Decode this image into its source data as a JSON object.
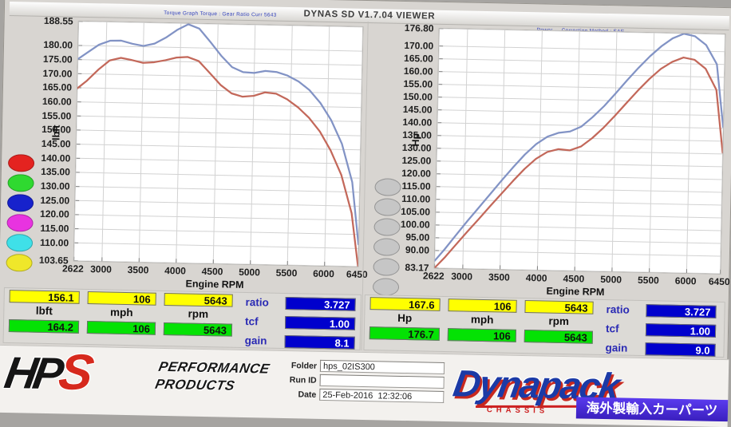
{
  "window_title": "DYNAS SD V1.7.04 VIEWER",
  "chart_data": [
    {
      "type": "line",
      "title": "Torque Graph  Torque : Gear Ratio   Curr 5643",
      "xlabel": "Engine RPM",
      "ylabel": "lbft",
      "xlim": [
        2622,
        6450
      ],
      "ylim": [
        103.65,
        188.55
      ],
      "xticks": [
        2622,
        3000,
        3500,
        4000,
        4500,
        5000,
        5500,
        6000,
        6450
      ],
      "yticks": [
        "188.55",
        "180.00",
        "175.00",
        "170.00",
        "165.00",
        "160.00",
        "155.00",
        "150.00",
        "145.00",
        "140.00",
        "135.00",
        "130.00",
        "125.00",
        "120.00",
        "115.00",
        "110.00",
        "103.65"
      ],
      "legend_colors": [
        "#e42320",
        "#2fd930",
        "#1722cc",
        "#e833e0",
        "#3fe0e8",
        "#efe72a"
      ],
      "x": [
        2622,
        2750,
        2900,
        3050,
        3200,
        3350,
        3500,
        3650,
        3800,
        3950,
        4100,
        4250,
        4400,
        4550,
        4700,
        4850,
        5000,
        5150,
        5300,
        5450,
        5600,
        5750,
        5900,
        6050,
        6200,
        6350,
        6450
      ],
      "series": [
        {
          "name": "corrected-torque",
          "color": "#8293c5",
          "values": [
            175.2,
            177.6,
            180.4,
            181.9,
            182.0,
            181.0,
            180.3,
            181.2,
            183.4,
            186.2,
            188.3,
            186.8,
            182.2,
            177.4,
            173.4,
            171.7,
            171.5,
            172.3,
            172.0,
            170.8,
            168.8,
            165.8,
            161.3,
            155.3,
            147.0,
            133.5,
            111.5
          ]
        },
        {
          "name": "measured-torque",
          "color": "#c3685a",
          "values": [
            164.8,
            167.6,
            171.6,
            174.9,
            175.9,
            175.2,
            174.3,
            174.6,
            175.4,
            176.4,
            176.7,
            175.3,
            171.2,
            167.0,
            164.1,
            163.0,
            163.4,
            164.7,
            164.3,
            162.4,
            159.6,
            156.0,
            151.2,
            144.6,
            136.0,
            122.5,
            103.7
          ]
        }
      ]
    },
    {
      "type": "line",
      "title": "Power  —  Correction Method : SAE",
      "xlabel": "Engine RPM",
      "ylabel": "Hp",
      "xlim": [
        2622,
        6450
      ],
      "ylim": [
        83.17,
        176.8
      ],
      "xticks": [
        2622,
        3000,
        3500,
        4000,
        4500,
        5000,
        5500,
        6000,
        6450
      ],
      "yticks": [
        "176.80",
        "170.00",
        "165.00",
        "160.00",
        "155.00",
        "150.00",
        "145.00",
        "140.00",
        "135.00",
        "130.00",
        "125.00",
        "120.00",
        "115.00",
        "110.00",
        "105.00",
        "100.00",
        "95.00",
        "90.00",
        "83.17"
      ],
      "legend_colors": [
        "#c6c6c6",
        "#c6c6c6",
        "#c6c6c6",
        "#c6c6c6",
        "#c6c6c6",
        "#c6c6c6"
      ],
      "x": [
        2622,
        2750,
        2900,
        3050,
        3200,
        3350,
        3500,
        3650,
        3800,
        3950,
        4100,
        4250,
        4400,
        4550,
        4700,
        4850,
        5000,
        5150,
        5300,
        5450,
        5600,
        5750,
        5900,
        6050,
        6200,
        6350,
        6450
      ],
      "series": [
        {
          "name": "corrected-power",
          "color": "#8293c5",
          "values": [
            86.0,
            90.5,
            96.2,
            101.8,
            107.2,
            112.6,
            118.0,
            123.2,
            128.2,
            132.4,
            135.4,
            137.0,
            137.6,
            139.6,
            143.4,
            147.8,
            152.8,
            158.0,
            163.0,
            167.6,
            171.6,
            174.8,
            176.7,
            175.8,
            172.5,
            165.0,
            140.5
          ]
        },
        {
          "name": "measured-power",
          "color": "#c3685a",
          "values": [
            83.2,
            87.2,
            92.4,
            97.6,
            102.6,
            107.8,
            112.8,
            117.8,
            122.6,
            126.6,
            129.4,
            130.6,
            130.2,
            131.8,
            135.2,
            139.4,
            144.2,
            149.2,
            154.2,
            158.8,
            162.8,
            165.6,
            167.4,
            166.6,
            163.2,
            155.0,
            130.5
          ]
        }
      ]
    }
  ],
  "readouts": [
    {
      "cursor": {
        "value": "156.1",
        "speed": "106",
        "rpm": "5643"
      },
      "units": {
        "value": "lbft",
        "speed": "mph",
        "rpm": "rpm"
      },
      "max": {
        "value": "164.2",
        "speed": "106",
        "rpm": "5643"
      },
      "params": [
        {
          "label": "ratio",
          "value": "3.727"
        },
        {
          "label": "tcf",
          "value": "1.00"
        },
        {
          "label": "gain",
          "value": "8.1"
        }
      ]
    },
    {
      "cursor": {
        "value": "167.6",
        "speed": "106",
        "rpm": "5643"
      },
      "units": {
        "value": "Hp",
        "speed": "mph",
        "rpm": "rpm"
      },
      "max": {
        "value": "176.7",
        "speed": "106",
        "rpm": "5643"
      },
      "params": [
        {
          "label": "ratio",
          "value": "3.727"
        },
        {
          "label": "tcf",
          "value": "1.00"
        },
        {
          "label": "gain",
          "value": "9.0"
        }
      ]
    }
  ],
  "footer": {
    "hps_main": "HP",
    "hps_s": "S",
    "perf_line1": "PERFORMANCE",
    "perf_line2": "PRODUCTS",
    "folder_label": "Folder",
    "folder_value": "hps_02IS300",
    "runid_label": "Run ID",
    "runid_value": "",
    "date_label": "Date",
    "date_value": "25-Feb-2016  12:32:06",
    "dynapack": "Dynapack",
    "chassis": "CHASSIS",
    "banner": "海外製輸入カーパーツ"
  }
}
